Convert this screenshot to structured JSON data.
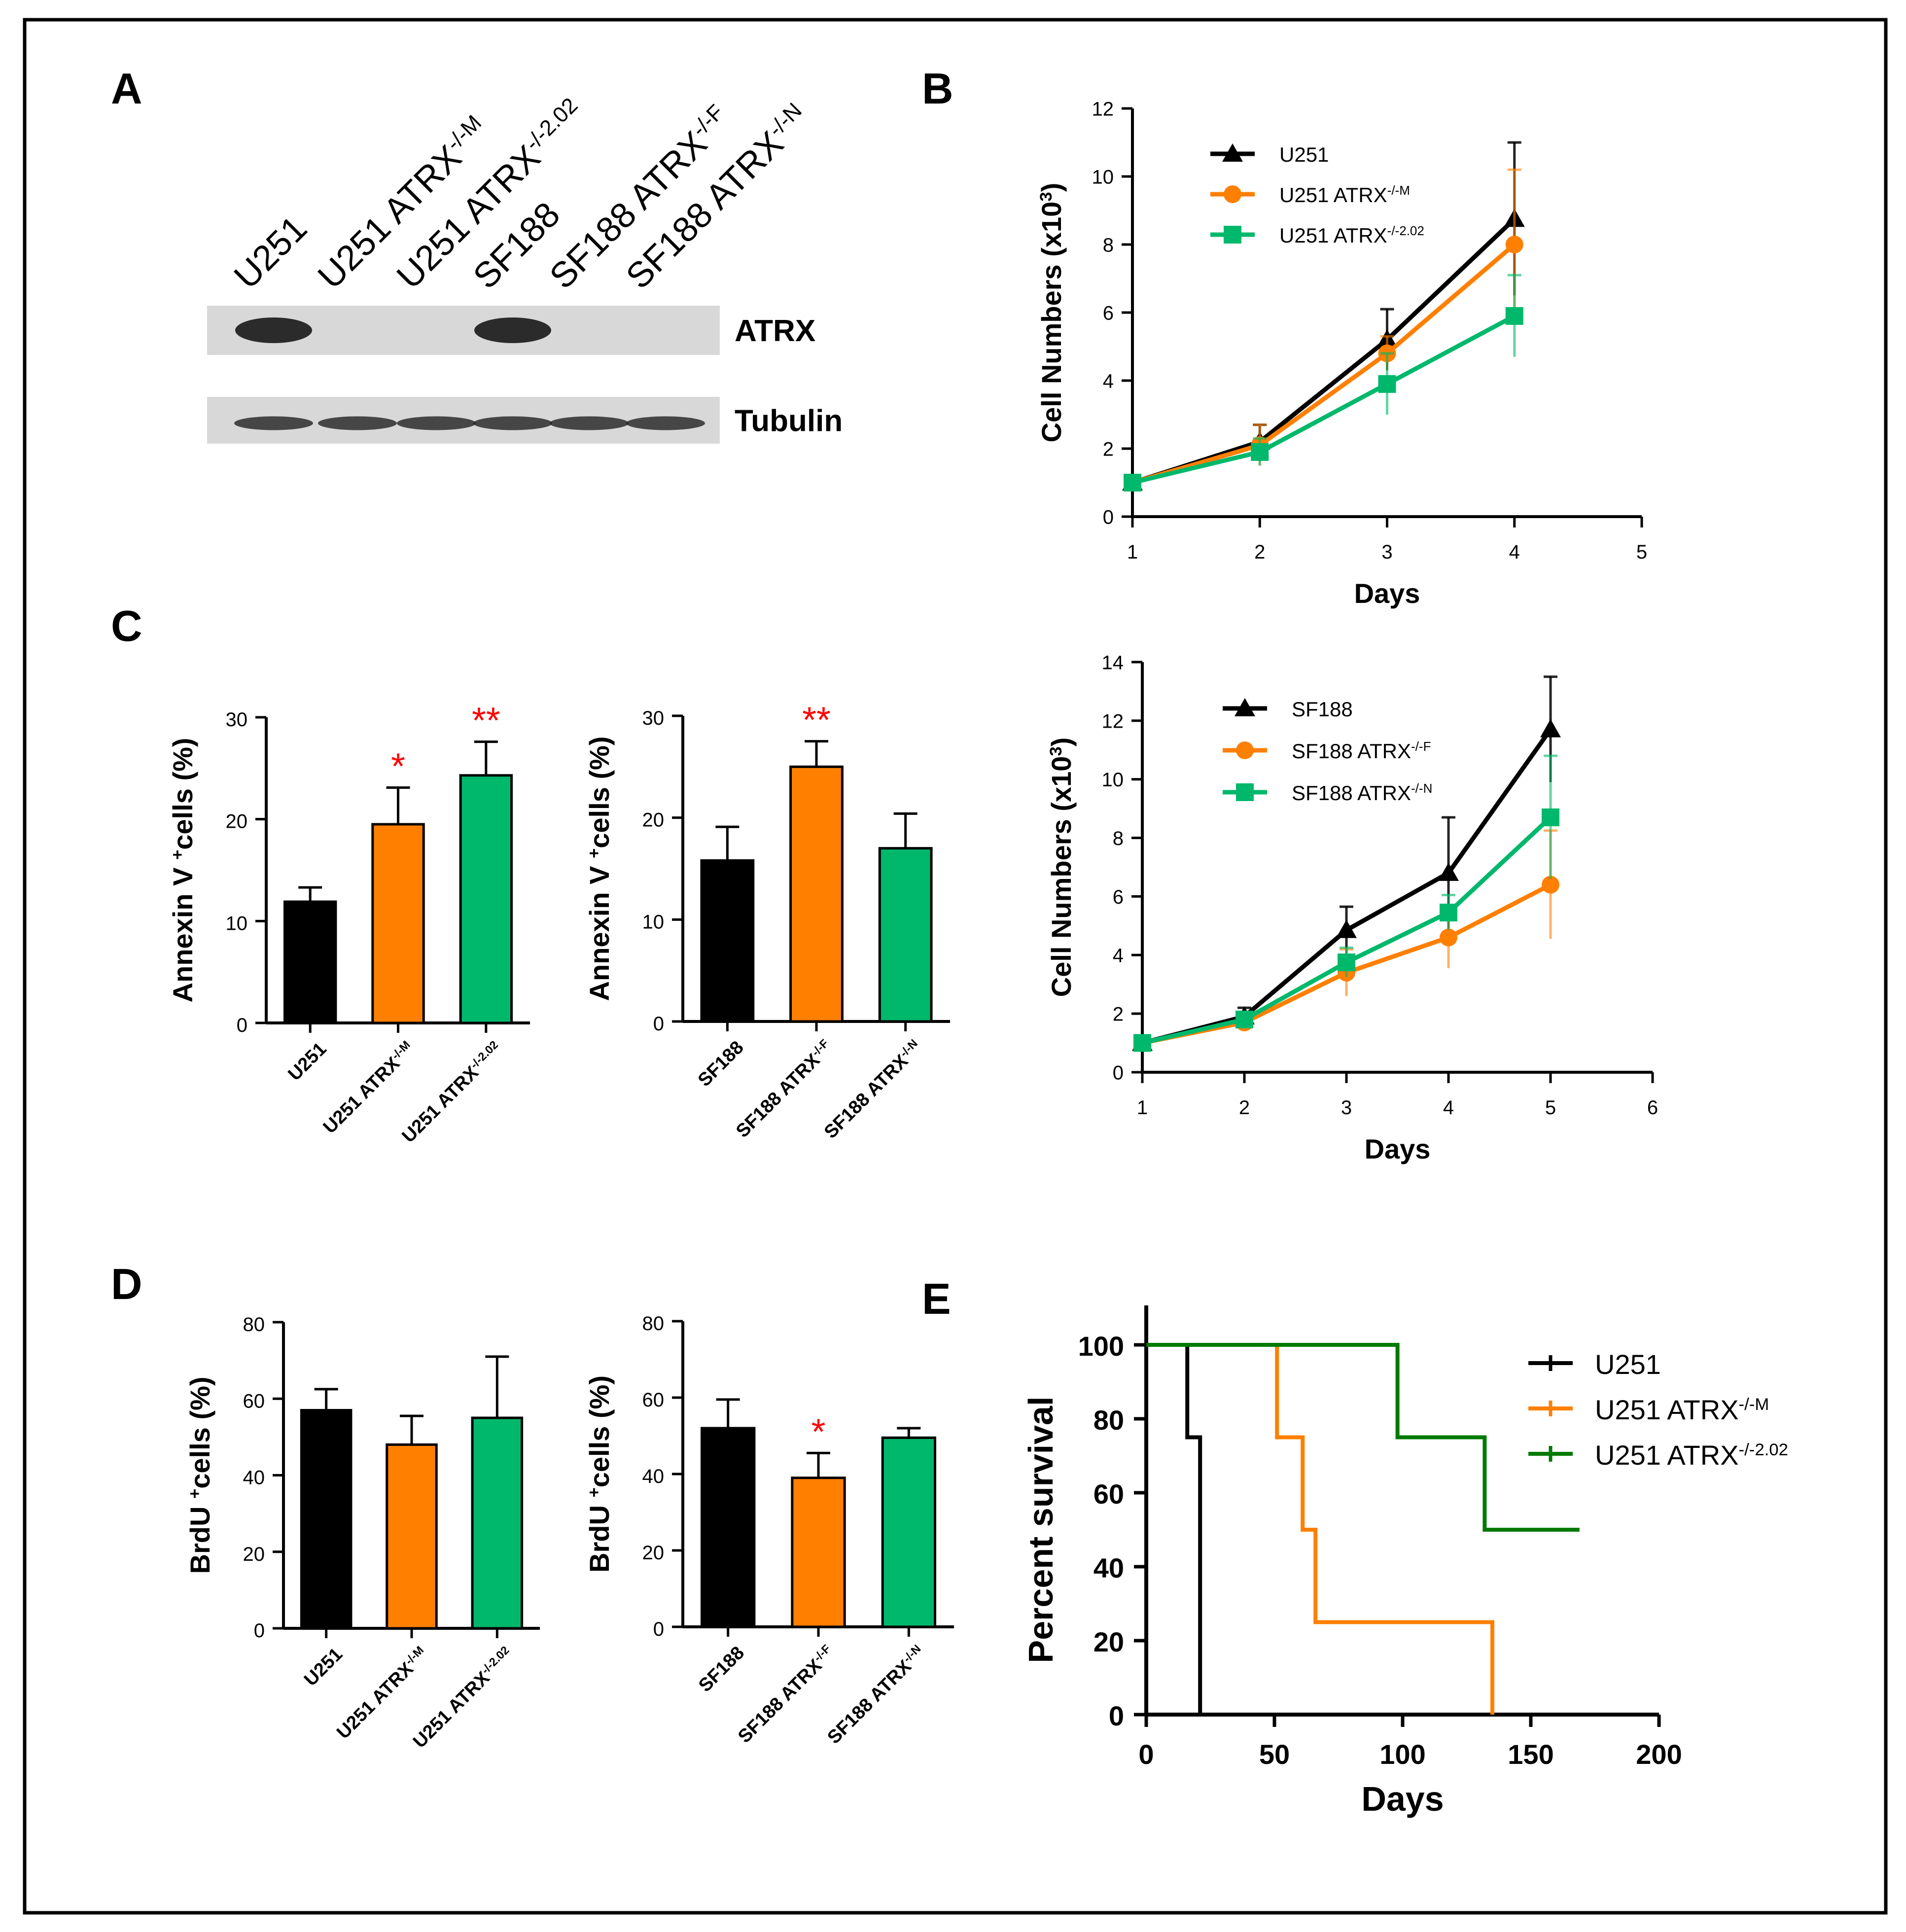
{
  "colors": {
    "black": "#000000",
    "orange": "#ff7f00",
    "green": "#00b86b",
    "dark_green": "#007a00",
    "asterisk_red": "#ff0000",
    "blot_band": "#222222",
    "blot_bg": "#d8d8d8"
  },
  "panels": {
    "A": {
      "letter": "A"
    },
    "B": {
      "letter": "B"
    },
    "C": {
      "letter": "C"
    },
    "D": {
      "letter": "D"
    },
    "E": {
      "letter": "E"
    }
  },
  "blot": {
    "lane_labels": [
      {
        "base": "U251",
        "sup": ""
      },
      {
        "base": "U251 ATRX",
        "sup": "-/-M"
      },
      {
        "base": "U251 ATRX",
        "sup": "-/-2.02"
      },
      {
        "base": "SF188",
        "sup": ""
      },
      {
        "base": "SF188 ATRX",
        "sup": "-/-F"
      },
      {
        "base": "SF188 ATRX",
        "sup": "-/-N"
      }
    ],
    "rows": [
      {
        "name": "ATRX",
        "band_present": [
          true,
          false,
          false,
          true,
          false,
          false
        ]
      },
      {
        "name": "Tubulin",
        "band_present": [
          true,
          true,
          true,
          true,
          true,
          true
        ]
      }
    ]
  },
  "chart_data": [
    {
      "id": "B_U251_growth",
      "type": "line",
      "xlabel": "Days",
      "ylabel_base": "Cell Numbers (x10",
      "ylabel_sup": "3",
      "ylabel_end": ")",
      "xlim": [
        1,
        5
      ],
      "ylim": [
        0,
        12
      ],
      "xticks": [
        1,
        2,
        3,
        4,
        5
      ],
      "yticks": [
        0,
        2,
        4,
        6,
        8,
        10,
        12
      ],
      "legend": "top-left",
      "series": [
        {
          "name": "U251",
          "sup": "",
          "marker": "triangle",
          "color": "#000000",
          "x": [
            1,
            2,
            3,
            4
          ],
          "y": [
            1.0,
            2.2,
            5.2,
            8.75
          ],
          "err": [
            0.1,
            0.5,
            0.9,
            2.25
          ]
        },
        {
          "name": "U251 ATRX",
          "sup": "-/-M",
          "marker": "circle",
          "color": "#ff7f00",
          "x": [
            1,
            2,
            3,
            4
          ],
          "y": [
            1.0,
            2.1,
            4.8,
            8.0
          ],
          "err": [
            0.1,
            0.6,
            0.5,
            2.2
          ]
        },
        {
          "name": "U251 ATRX",
          "sup": "-/-2.02",
          "marker": "square",
          "color": "#00b86b",
          "x": [
            1,
            2,
            3,
            4
          ],
          "y": [
            1.0,
            1.9,
            3.9,
            5.9
          ],
          "err": [
            0.1,
            0.4,
            0.9,
            1.2
          ]
        }
      ]
    },
    {
      "id": "B_SF188_growth",
      "type": "line",
      "xlabel": "Days",
      "ylabel_base": "Cell Numbers (x10",
      "ylabel_sup": "3",
      "ylabel_end": ")",
      "xlim": [
        1,
        6
      ],
      "ylim": [
        0,
        14
      ],
      "xticks": [
        1,
        2,
        3,
        4,
        5,
        6
      ],
      "yticks": [
        0,
        2,
        4,
        6,
        8,
        10,
        12,
        14
      ],
      "legend": "top-left",
      "series": [
        {
          "name": "SF188",
          "sup": "",
          "marker": "triangle",
          "color": "#000000",
          "x": [
            1,
            2,
            3,
            4,
            5
          ],
          "y": [
            1.0,
            1.9,
            4.85,
            6.8,
            11.7
          ],
          "err": [
            0.1,
            0.3,
            0.8,
            1.9,
            1.8
          ]
        },
        {
          "name": "SF188 ATRX",
          "sup": "-/-F",
          "marker": "circle",
          "color": "#ff7f00",
          "x": [
            1,
            2,
            3,
            4,
            5
          ],
          "y": [
            1.0,
            1.7,
            3.4,
            4.6,
            6.4
          ],
          "err": [
            0.1,
            0.2,
            0.8,
            1.05,
            1.85
          ]
        },
        {
          "name": "SF188 ATRX",
          "sup": "-/-N",
          "marker": "square",
          "color": "#00b86b",
          "x": [
            1,
            2,
            3,
            4,
            5
          ],
          "y": [
            1.0,
            1.8,
            3.75,
            5.45,
            8.7
          ],
          "err": [
            0.1,
            0.2,
            0.5,
            0.6,
            2.1
          ]
        }
      ]
    },
    {
      "id": "C_U251_annexin",
      "type": "bar",
      "ylabel_base": "Annexin V",
      "ylabel_sup": "+",
      "ylabel_end": "cells (%)",
      "ylim": [
        0,
        30
      ],
      "yticks": [
        0,
        10,
        20,
        30
      ],
      "categories": [
        {
          "base": "U251",
          "sup": ""
        },
        {
          "base": "U251 ATRX",
          "sup": "-/-M"
        },
        {
          "base": "U251 ATRX",
          "sup": "-/-2.02"
        }
      ],
      "values": [
        11.9,
        19.5,
        24.3
      ],
      "err": [
        1.4,
        3.6,
        3.3
      ],
      "colors": [
        "#000000",
        "#ff7f00",
        "#00b86b"
      ],
      "significance": [
        "",
        "*",
        "**"
      ]
    },
    {
      "id": "C_SF188_annexin",
      "type": "bar",
      "ylabel_base": "Annexin V",
      "ylabel_sup": "+",
      "ylabel_end": "cells (%)",
      "ylim": [
        0,
        30
      ],
      "yticks": [
        0,
        10,
        20,
        30
      ],
      "categories": [
        {
          "base": "SF188",
          "sup": ""
        },
        {
          "base": "SF188 ATRX",
          "sup": "-/-F"
        },
        {
          "base": "SF188 ATRX",
          "sup": "-/-N"
        }
      ],
      "values": [
        15.8,
        25.0,
        17.0
      ],
      "err": [
        3.3,
        2.5,
        3.4
      ],
      "colors": [
        "#000000",
        "#ff7f00",
        "#00b86b"
      ],
      "significance": [
        "",
        "**",
        ""
      ]
    },
    {
      "id": "D_U251_brdu",
      "type": "bar",
      "ylabel_base": "BrdU",
      "ylabel_sup": "+",
      "ylabel_end": "cells (%)",
      "ylim": [
        0,
        80
      ],
      "yticks": [
        0,
        20,
        40,
        60,
        80
      ],
      "categories": [
        {
          "base": "U251",
          "sup": ""
        },
        {
          "base": "U251 ATRX",
          "sup": "-/-M"
        },
        {
          "base": "U251 ATRX",
          "sup": "-/-2.02"
        }
      ],
      "values": [
        57.0,
        48.0,
        55.0
      ],
      "err": [
        5.5,
        7.5,
        16.0
      ],
      "colors": [
        "#000000",
        "#ff7f00",
        "#00b86b"
      ],
      "significance": [
        "",
        "",
        ""
      ]
    },
    {
      "id": "D_SF188_brdu",
      "type": "bar",
      "ylabel_base": "BrdU",
      "ylabel_sup": "+",
      "ylabel_end": "cells (%)",
      "ylim": [
        0,
        80
      ],
      "yticks": [
        0,
        20,
        40,
        60,
        80
      ],
      "categories": [
        {
          "base": "SF188",
          "sup": ""
        },
        {
          "base": "SF188 ATRX",
          "sup": "-/-F"
        },
        {
          "base": "SF188 ATRX",
          "sup": "-/-N"
        }
      ],
      "values": [
        52.0,
        39.0,
        49.5
      ],
      "err": [
        7.5,
        6.5,
        2.5
      ],
      "colors": [
        "#000000",
        "#ff7f00",
        "#00b86b"
      ],
      "significance": [
        "",
        "*",
        ""
      ]
    },
    {
      "id": "E_survival",
      "type": "line",
      "xlabel": "Days",
      "ylabel": "Percent survival",
      "xlim": [
        0,
        200
      ],
      "ylim": [
        0,
        100
      ],
      "xticks": [
        0,
        50,
        100,
        150,
        200
      ],
      "yticks": [
        0,
        20,
        40,
        60,
        80,
        100
      ],
      "legend": "right",
      "series": [
        {
          "name": "U251",
          "sup": "",
          "color": "#000000",
          "steps": [
            [
              0,
              100
            ],
            [
              16,
              100
            ],
            [
              16,
              75
            ],
            [
              21,
              75
            ],
            [
              21,
              0
            ],
            [
              134,
              0
            ]
          ]
        },
        {
          "name": "U251 ATRX",
          "sup": "-/-M",
          "color": "#ff7f00",
          "steps": [
            [
              0,
              100
            ],
            [
              51,
              100
            ],
            [
              51,
              75
            ],
            [
              61,
              75
            ],
            [
              61,
              50
            ],
            [
              66,
              50
            ],
            [
              66,
              25
            ],
            [
              135,
              25
            ],
            [
              135,
              0
            ]
          ]
        },
        {
          "name": "U251 ATRX",
          "sup": "-/-2.02",
          "color": "#007a00",
          "steps": [
            [
              0,
              100
            ],
            [
              98,
              100
            ],
            [
              98,
              75
            ],
            [
              132,
              75
            ],
            [
              132,
              50
            ],
            [
              169,
              50
            ]
          ]
        }
      ]
    }
  ]
}
